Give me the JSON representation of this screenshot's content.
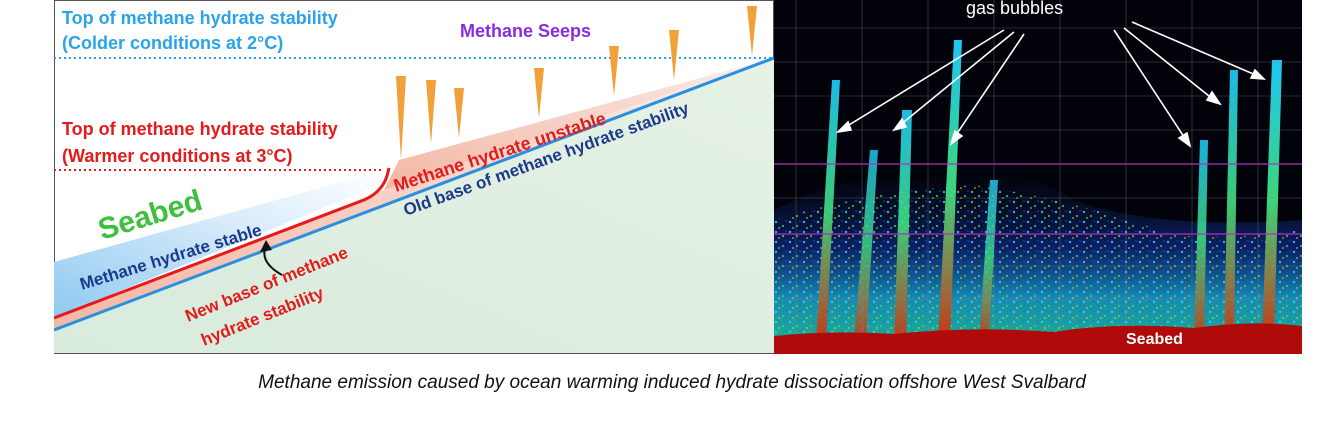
{
  "diagram": {
    "top_cold": [
      "Top of methane hydrate stability",
      "(Colder conditions at 2°C)"
    ],
    "seeps": "Methane Seeps",
    "top_warm": [
      "Top of methane hydrate stability",
      "(Warmer conditions at 3°C)"
    ],
    "seabed": "Seabed",
    "stable": "Methane hydrate stable",
    "unstable": "Methane hydrate unstable",
    "old_base": "Old base of methane hydrate stability",
    "new_base": [
      "New base of methane",
      "hydrate stability"
    ],
    "colors": {
      "cold_line": "#2aa3e8",
      "warm_line": "#e31b1b",
      "seeps_text": "#8a2be2",
      "seabed_text": "#3fbf3f",
      "stable_text": "#1b3a8c",
      "seep_cone": "#f2a03a"
    }
  },
  "sonar": {
    "gas_bubbles": "gas bubbles",
    "seabed": "Seabed"
  },
  "caption": "Methane emission caused by ocean warming induced hydrate dissociation offshore West Svalbard"
}
